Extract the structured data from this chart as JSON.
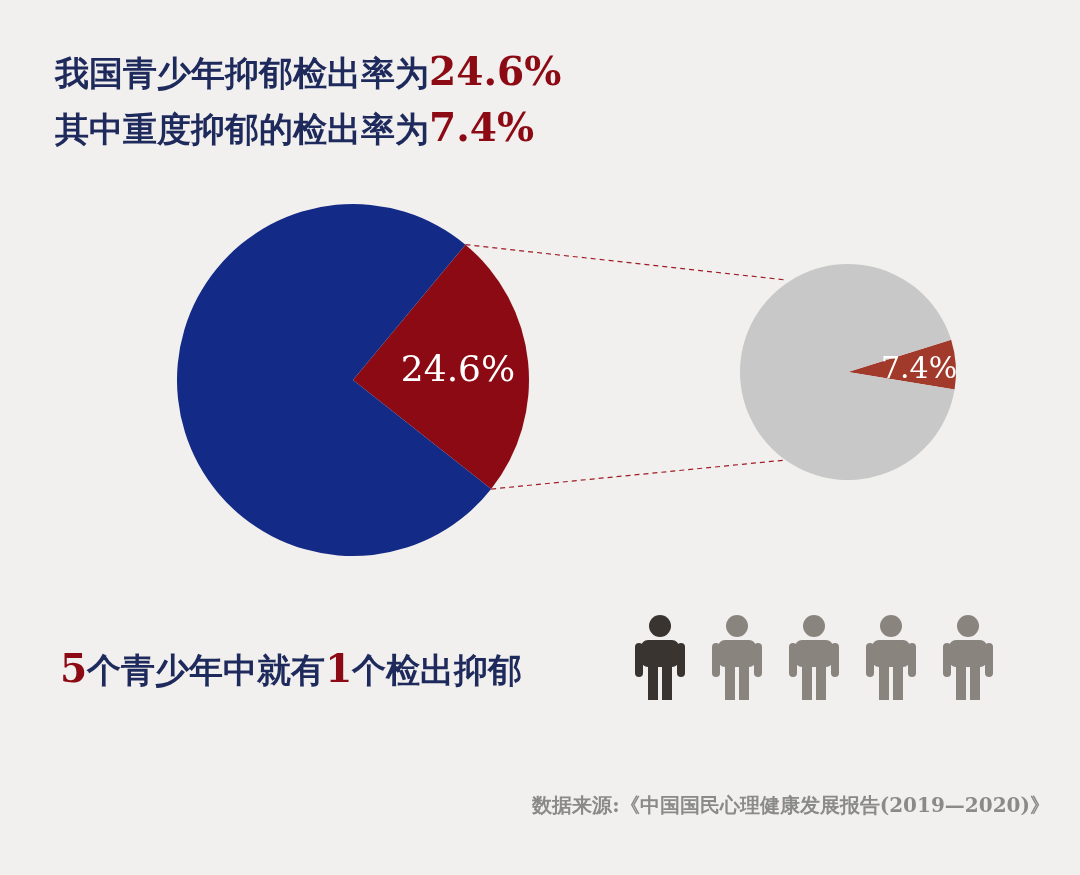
{
  "chart_data": [
    {
      "type": "pie",
      "title": "我国青少年抑郁检出率为24.6%\n其中重度抑郁的检出率为7.4%",
      "categories": [
        null,
        null
      ],
      "values": [
        24.6,
        75.4
      ],
      "colors": [
        "#8c0a14",
        "#142a87"
      ],
      "value_labels": [
        "24.6%",
        null
      ],
      "annotations": [
        "5个青少年中就有1个检出抑郁",
        "数据来源:《中国国民心理健康发展报告(2019—2020)》"
      ]
    },
    {
      "type": "pie",
      "categories": [
        null,
        null
      ],
      "values": [
        7.4,
        92.6
      ],
      "colors": [
        "#a23a2c",
        "#c8c8c8"
      ],
      "value_labels": [
        "7.4%",
        null
      ]
    }
  ]
}
